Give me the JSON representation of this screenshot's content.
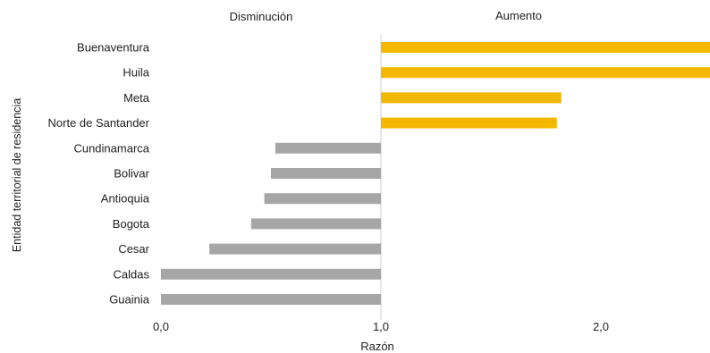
{
  "chart_data": {
    "type": "bar",
    "orientation": "horizontal",
    "categories": [
      "Buenaventura",
      "Huila",
      "Meta",
      "Norte de Santander",
      "Cundinamarca",
      "Bolivar",
      "Antioquia",
      "Bogota",
      "Cesar",
      "Caldas",
      "Guainia"
    ],
    "values": [
      2.5,
      2.5,
      1.82,
      1.8,
      0.52,
      0.5,
      0.47,
      0.41,
      0.22,
      0.0,
      0.0
    ],
    "baseline": 1.0,
    "xlim": [
      0,
      2.5
    ],
    "xticks": [
      "0,0",
      "1,0",
      "2,0"
    ],
    "xtick_values": [
      0,
      1,
      2
    ],
    "xlabel": "Razón",
    "ylabel": "Entidad territorial de residencia",
    "annotations": [
      "Disminución",
      "Aumento"
    ],
    "colors": {
      "aumento": "#f5b800",
      "disminucion": "#a6a6a6",
      "reference_line": "#d0d0d0"
    },
    "grid": false
  }
}
